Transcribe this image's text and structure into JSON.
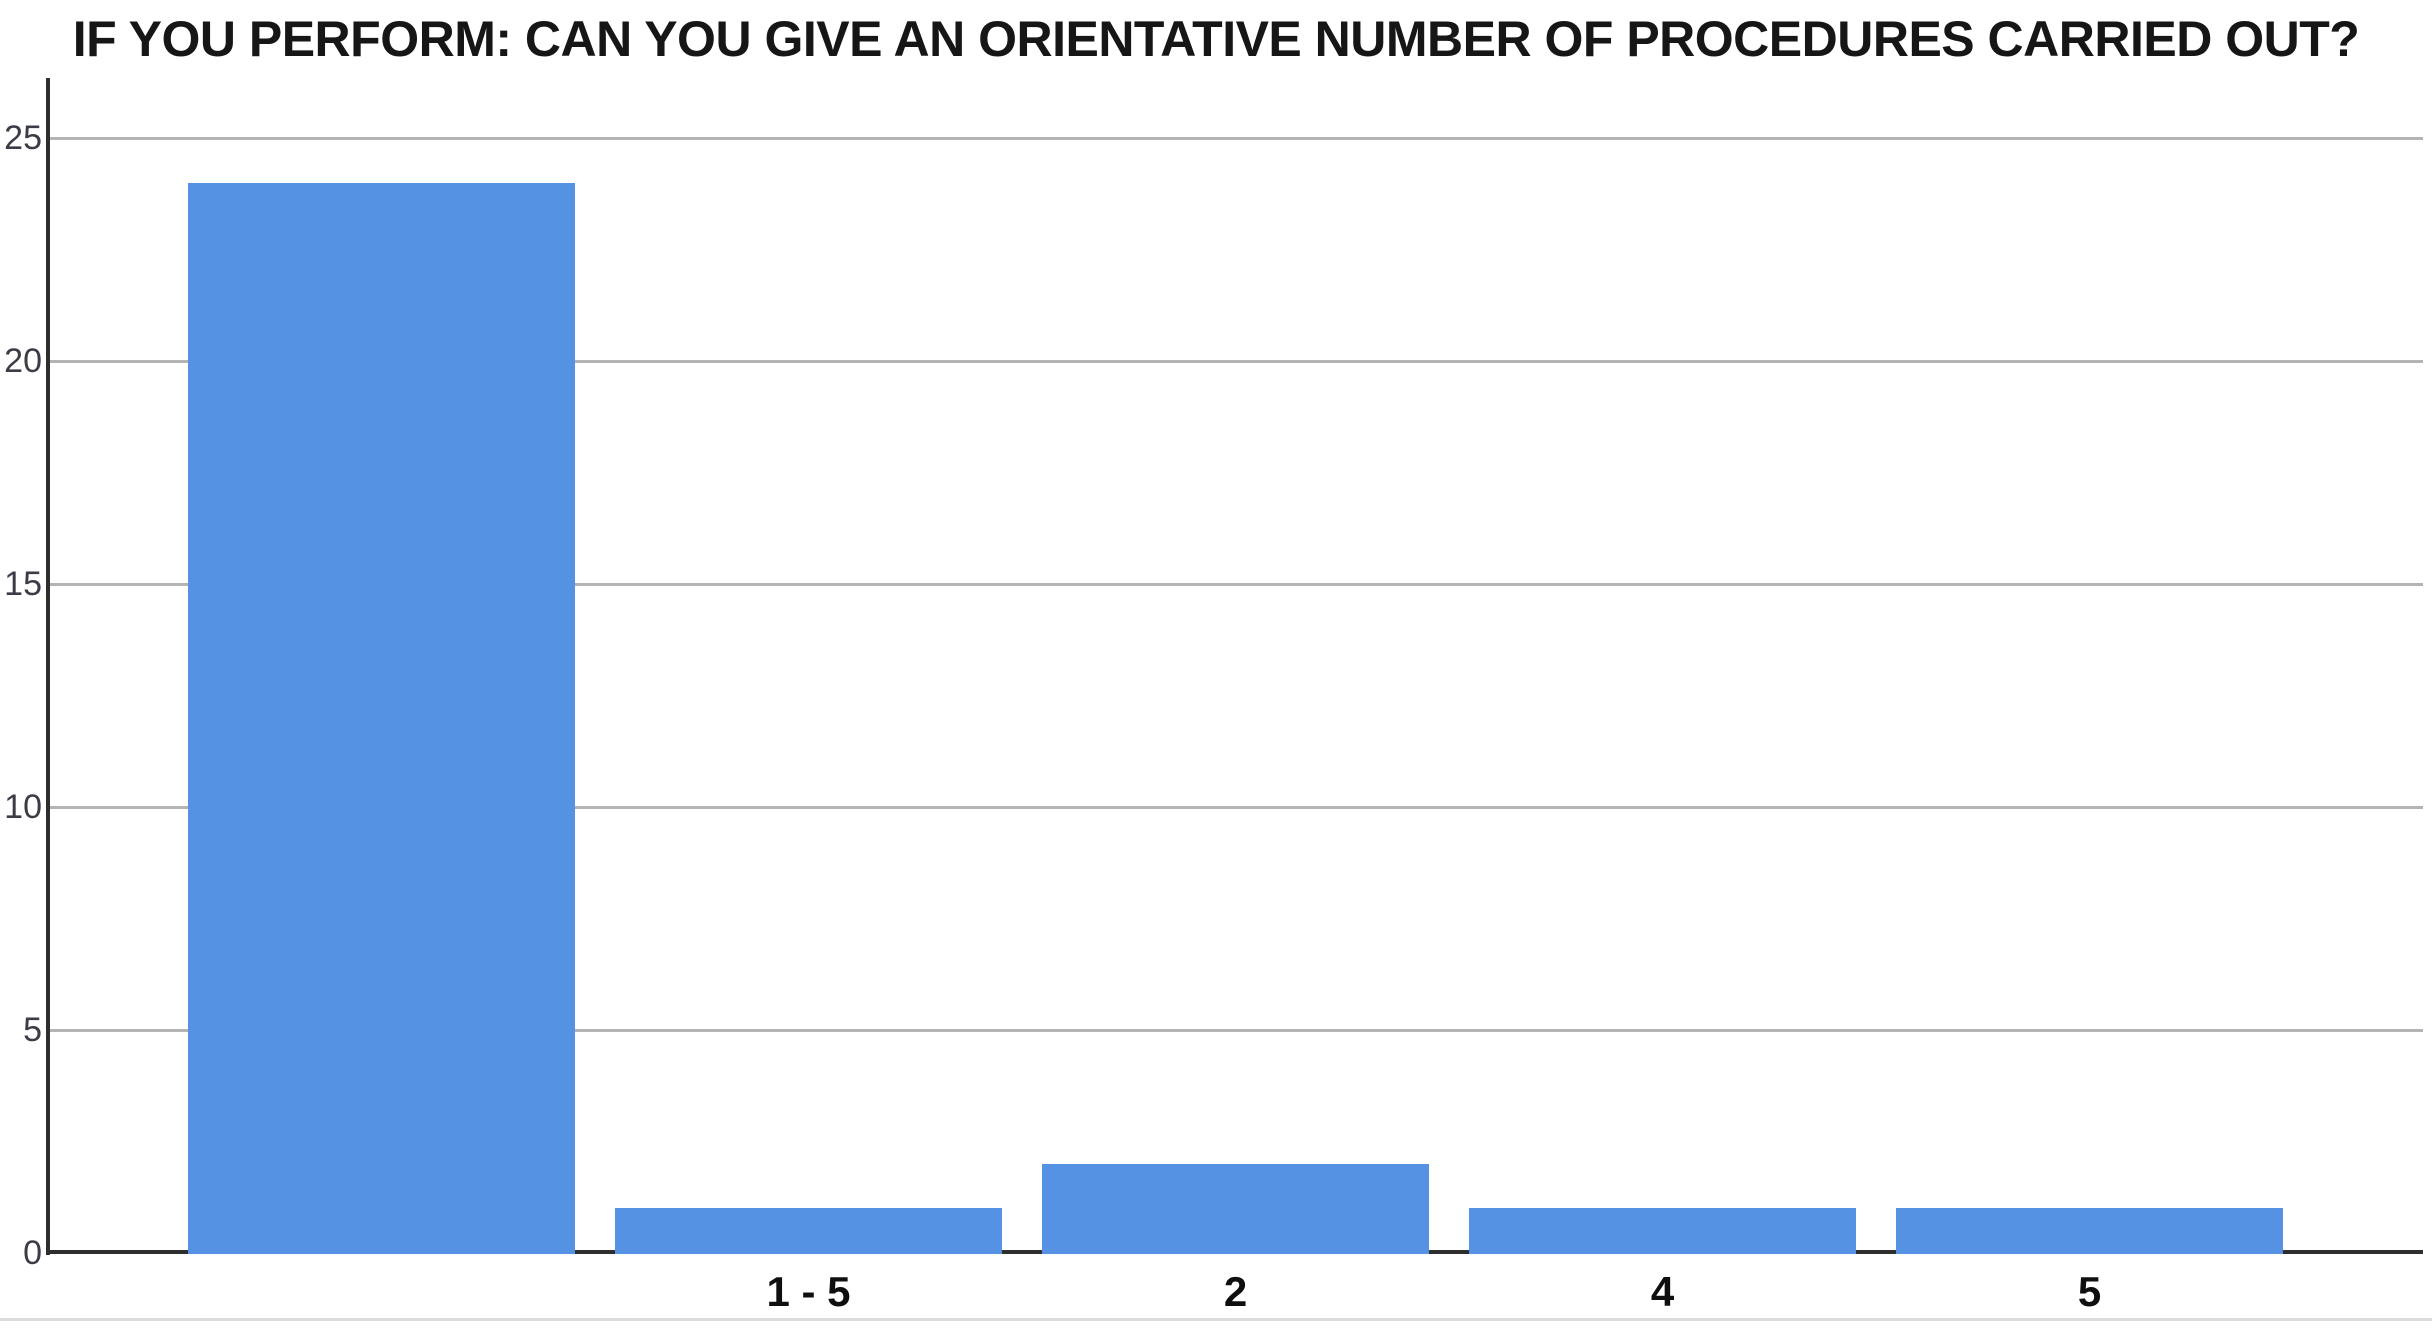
{
  "chart_data": {
    "type": "bar",
    "title": "IF YOU PERFORM: CAN YOU GIVE AN ORIENTATIVE NUMBER OF PROCEDURES CARRIED OUT?",
    "categories": [
      "",
      "1 - 5",
      "2",
      "4",
      "5"
    ],
    "values": [
      24,
      1,
      2,
      1,
      1
    ],
    "xlabel": "",
    "ylabel": "",
    "ylim": [
      0,
      26
    ],
    "yticks": [
      0,
      5,
      10,
      15,
      20,
      25
    ],
    "grid": true,
    "legend": "none",
    "bar_color": "#5592E3",
    "gridline_color": "#b4b4b4",
    "axis_color": "#2e2e2e",
    "title_color": "#161616",
    "x_label_color": "#0f0f0f",
    "y_label_color": "#3c3c46"
  }
}
